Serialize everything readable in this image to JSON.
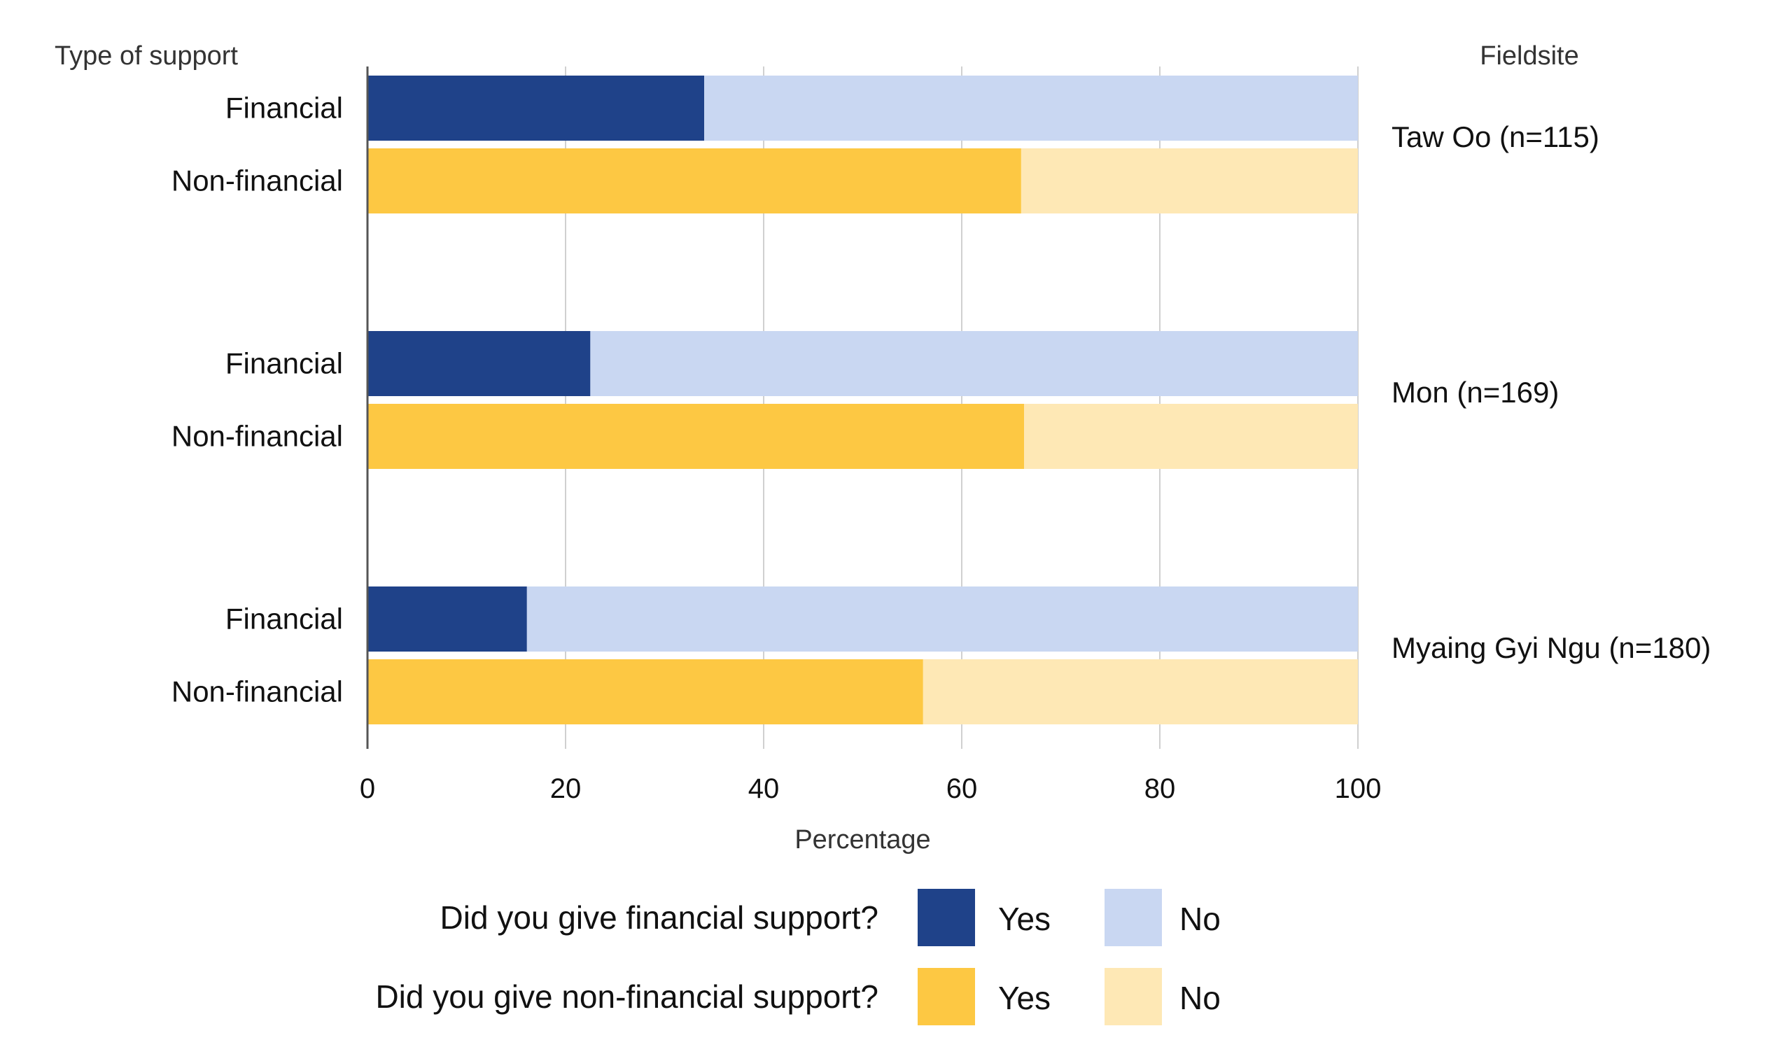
{
  "chart_data": {
    "type": "bar",
    "orientation": "horizontal",
    "stacked": true,
    "left_header": "Type of support",
    "right_header": "Fieldsite",
    "xlabel": "Percentage",
    "xlim": [
      0,
      100
    ],
    "xticks": [
      0,
      20,
      40,
      60,
      80,
      100
    ],
    "grid": true,
    "legend_position": "bottom",
    "groups": [
      {
        "fieldsite": "Taw Oo (n=115)",
        "bars": [
          {
            "category": "Financial",
            "question": "financial",
            "yes": 34,
            "no": 66
          },
          {
            "category": "Non-financial",
            "question": "non_financial",
            "yes": 66,
            "no": 34
          }
        ]
      },
      {
        "fieldsite": "Mon (n=169)",
        "bars": [
          {
            "category": "Financial",
            "question": "financial",
            "yes": 22.5,
            "no": 77.5
          },
          {
            "category": "Non-financial",
            "question": "non_financial",
            "yes": 66.3,
            "no": 33.7
          }
        ]
      },
      {
        "fieldsite": "Myaing Gyi Ngu (n=180)",
        "bars": [
          {
            "category": "Financial",
            "question": "financial",
            "yes": 16.1,
            "no": 83.9
          },
          {
            "category": "Non-financial",
            "question": "non_financial",
            "yes": 56.1,
            "no": 43.9
          }
        ]
      }
    ],
    "legend": [
      {
        "key": "financial",
        "question": "Did you give financial support?",
        "yes_label": "Yes",
        "no_label": "No",
        "yes_color": "#1f4289",
        "no_color": "#c9d7f2"
      },
      {
        "key": "non_financial",
        "question": "Did you give non-financial support?",
        "yes_label": "Yes",
        "no_label": "No",
        "yes_color": "#fdc843",
        "no_color": "#fee8b5"
      }
    ]
  }
}
